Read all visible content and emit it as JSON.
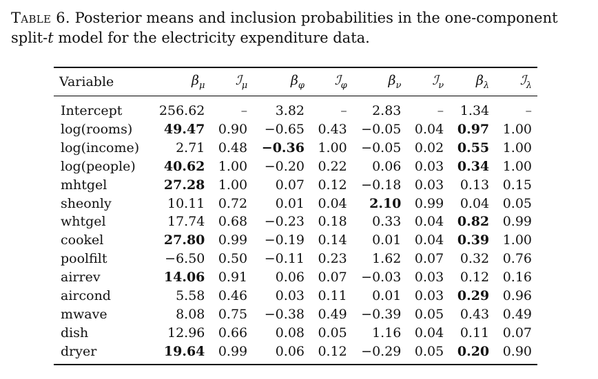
{
  "caption": {
    "label": "Table 6.",
    "text_part1": " Posterior means and inclusion probabilities in the one-component split-",
    "t_symbol": "t",
    "text_part2": " model for the electricity expenditure data."
  },
  "table": {
    "header": {
      "variable": "Variable",
      "beta_mu": "β",
      "beta_mu_sub": "μ",
      "I_mu": "ℐ",
      "I_mu_sub": "μ",
      "beta_phi": "β",
      "beta_phi_sub": "φ",
      "I_phi": "ℐ",
      "I_phi_sub": "φ",
      "beta_nu": "β",
      "beta_nu_sub": "ν",
      "I_nu": "ℐ",
      "I_nu_sub": "ν",
      "beta_lambda": "β",
      "beta_lambda_sub": "λ",
      "I_lambda": "ℐ",
      "I_lambda_sub": "λ"
    },
    "rows": [
      {
        "variable": "Intercept",
        "beta_mu": "256.62",
        "I_mu": "–",
        "beta_phi": "3.82",
        "I_phi": "–",
        "beta_nu": "2.83",
        "I_nu": "–",
        "beta_lambda": "1.34",
        "I_lambda": "–"
      },
      {
        "variable": "log(rooms)",
        "beta_mu": "49.47",
        "I_mu": "0.90",
        "beta_phi": "−0.65",
        "I_phi": "0.43",
        "beta_nu": "−0.05",
        "I_nu": "0.04",
        "beta_lambda": "0.97",
        "I_lambda": "1.00"
      },
      {
        "variable": "log(income)",
        "beta_mu": "2.71",
        "I_mu": "0.48",
        "beta_phi": "−0.36",
        "I_phi": "1.00",
        "beta_nu": "−0.05",
        "I_nu": "0.02",
        "beta_lambda": "0.55",
        "I_lambda": "1.00"
      },
      {
        "variable": "log(people)",
        "beta_mu": "40.62",
        "I_mu": "1.00",
        "beta_phi": "−0.20",
        "I_phi": "0.22",
        "beta_nu": "0.06",
        "I_nu": "0.03",
        "beta_lambda": "0.34",
        "I_lambda": "1.00"
      },
      {
        "variable": "mhtgel",
        "beta_mu": "27.28",
        "I_mu": "1.00",
        "beta_phi": "0.07",
        "I_phi": "0.12",
        "beta_nu": "−0.18",
        "I_nu": "0.03",
        "beta_lambda": "0.13",
        "I_lambda": "0.15"
      },
      {
        "variable": "sheonly",
        "beta_mu": "10.11",
        "I_mu": "0.72",
        "beta_phi": "0.01",
        "I_phi": "0.04",
        "beta_nu": "2.10",
        "I_nu": "0.99",
        "beta_lambda": "0.04",
        "I_lambda": "0.05"
      },
      {
        "variable": "whtgel",
        "beta_mu": "17.74",
        "I_mu": "0.68",
        "beta_phi": "−0.23",
        "I_phi": "0.18",
        "beta_nu": "0.33",
        "I_nu": "0.04",
        "beta_lambda": "0.82",
        "I_lambda": "0.99"
      },
      {
        "variable": "cookel",
        "beta_mu": "27.80",
        "I_mu": "0.99",
        "beta_phi": "−0.19",
        "I_phi": "0.14",
        "beta_nu": "0.01",
        "I_nu": "0.04",
        "beta_lambda": "0.39",
        "I_lambda": "1.00"
      },
      {
        "variable": "poolfilt",
        "beta_mu": "−6.50",
        "I_mu": "0.50",
        "beta_phi": "−0.11",
        "I_phi": "0.23",
        "beta_nu": "1.62",
        "I_nu": "0.07",
        "beta_lambda": "0.32",
        "I_lambda": "0.76"
      },
      {
        "variable": "airrev",
        "beta_mu": "14.06",
        "I_mu": "0.91",
        "beta_phi": "0.06",
        "I_phi": "0.07",
        "beta_nu": "−0.03",
        "I_nu": "0.03",
        "beta_lambda": "0.12",
        "I_lambda": "0.16"
      },
      {
        "variable": "aircond",
        "beta_mu": "5.58",
        "I_mu": "0.46",
        "beta_phi": "0.03",
        "I_phi": "0.11",
        "beta_nu": "0.01",
        "I_nu": "0.03",
        "beta_lambda": "0.29",
        "I_lambda": "0.96"
      },
      {
        "variable": "mwave",
        "beta_mu": "8.08",
        "I_mu": "0.75",
        "beta_phi": "−0.38",
        "I_phi": "0.49",
        "beta_nu": "−0.39",
        "I_nu": "0.05",
        "beta_lambda": "0.43",
        "I_lambda": "0.49"
      },
      {
        "variable": "dish",
        "beta_mu": "12.96",
        "I_mu": "0.66",
        "beta_phi": "0.08",
        "I_phi": "0.05",
        "beta_nu": "1.16",
        "I_nu": "0.04",
        "beta_lambda": "0.11",
        "I_lambda": "0.07"
      },
      {
        "variable": "dryer",
        "beta_mu": "19.64",
        "I_mu": "0.99",
        "beta_phi": "0.06",
        "I_phi": "0.12",
        "beta_nu": "−0.29",
        "I_nu": "0.05",
        "beta_lambda": "0.20",
        "I_lambda": "0.90"
      }
    ],
    "bold_cells": [
      {
        "row": 1,
        "col": "beta_mu"
      },
      {
        "row": 1,
        "col": "beta_lambda"
      },
      {
        "row": 2,
        "col": "beta_phi"
      },
      {
        "row": 2,
        "col": "beta_lambda"
      },
      {
        "row": 3,
        "col": "beta_mu"
      },
      {
        "row": 3,
        "col": "beta_lambda"
      },
      {
        "row": 4,
        "col": "beta_mu"
      },
      {
        "row": 5,
        "col": "beta_nu"
      },
      {
        "row": 6,
        "col": "beta_lambda"
      },
      {
        "row": 7,
        "col": "beta_mu"
      },
      {
        "row": 7,
        "col": "beta_lambda"
      },
      {
        "row": 9,
        "col": "beta_mu"
      },
      {
        "row": 10,
        "col": "beta_lambda"
      },
      {
        "row": 13,
        "col": "beta_mu"
      },
      {
        "row": 13,
        "col": "beta_lambda"
      }
    ]
  }
}
